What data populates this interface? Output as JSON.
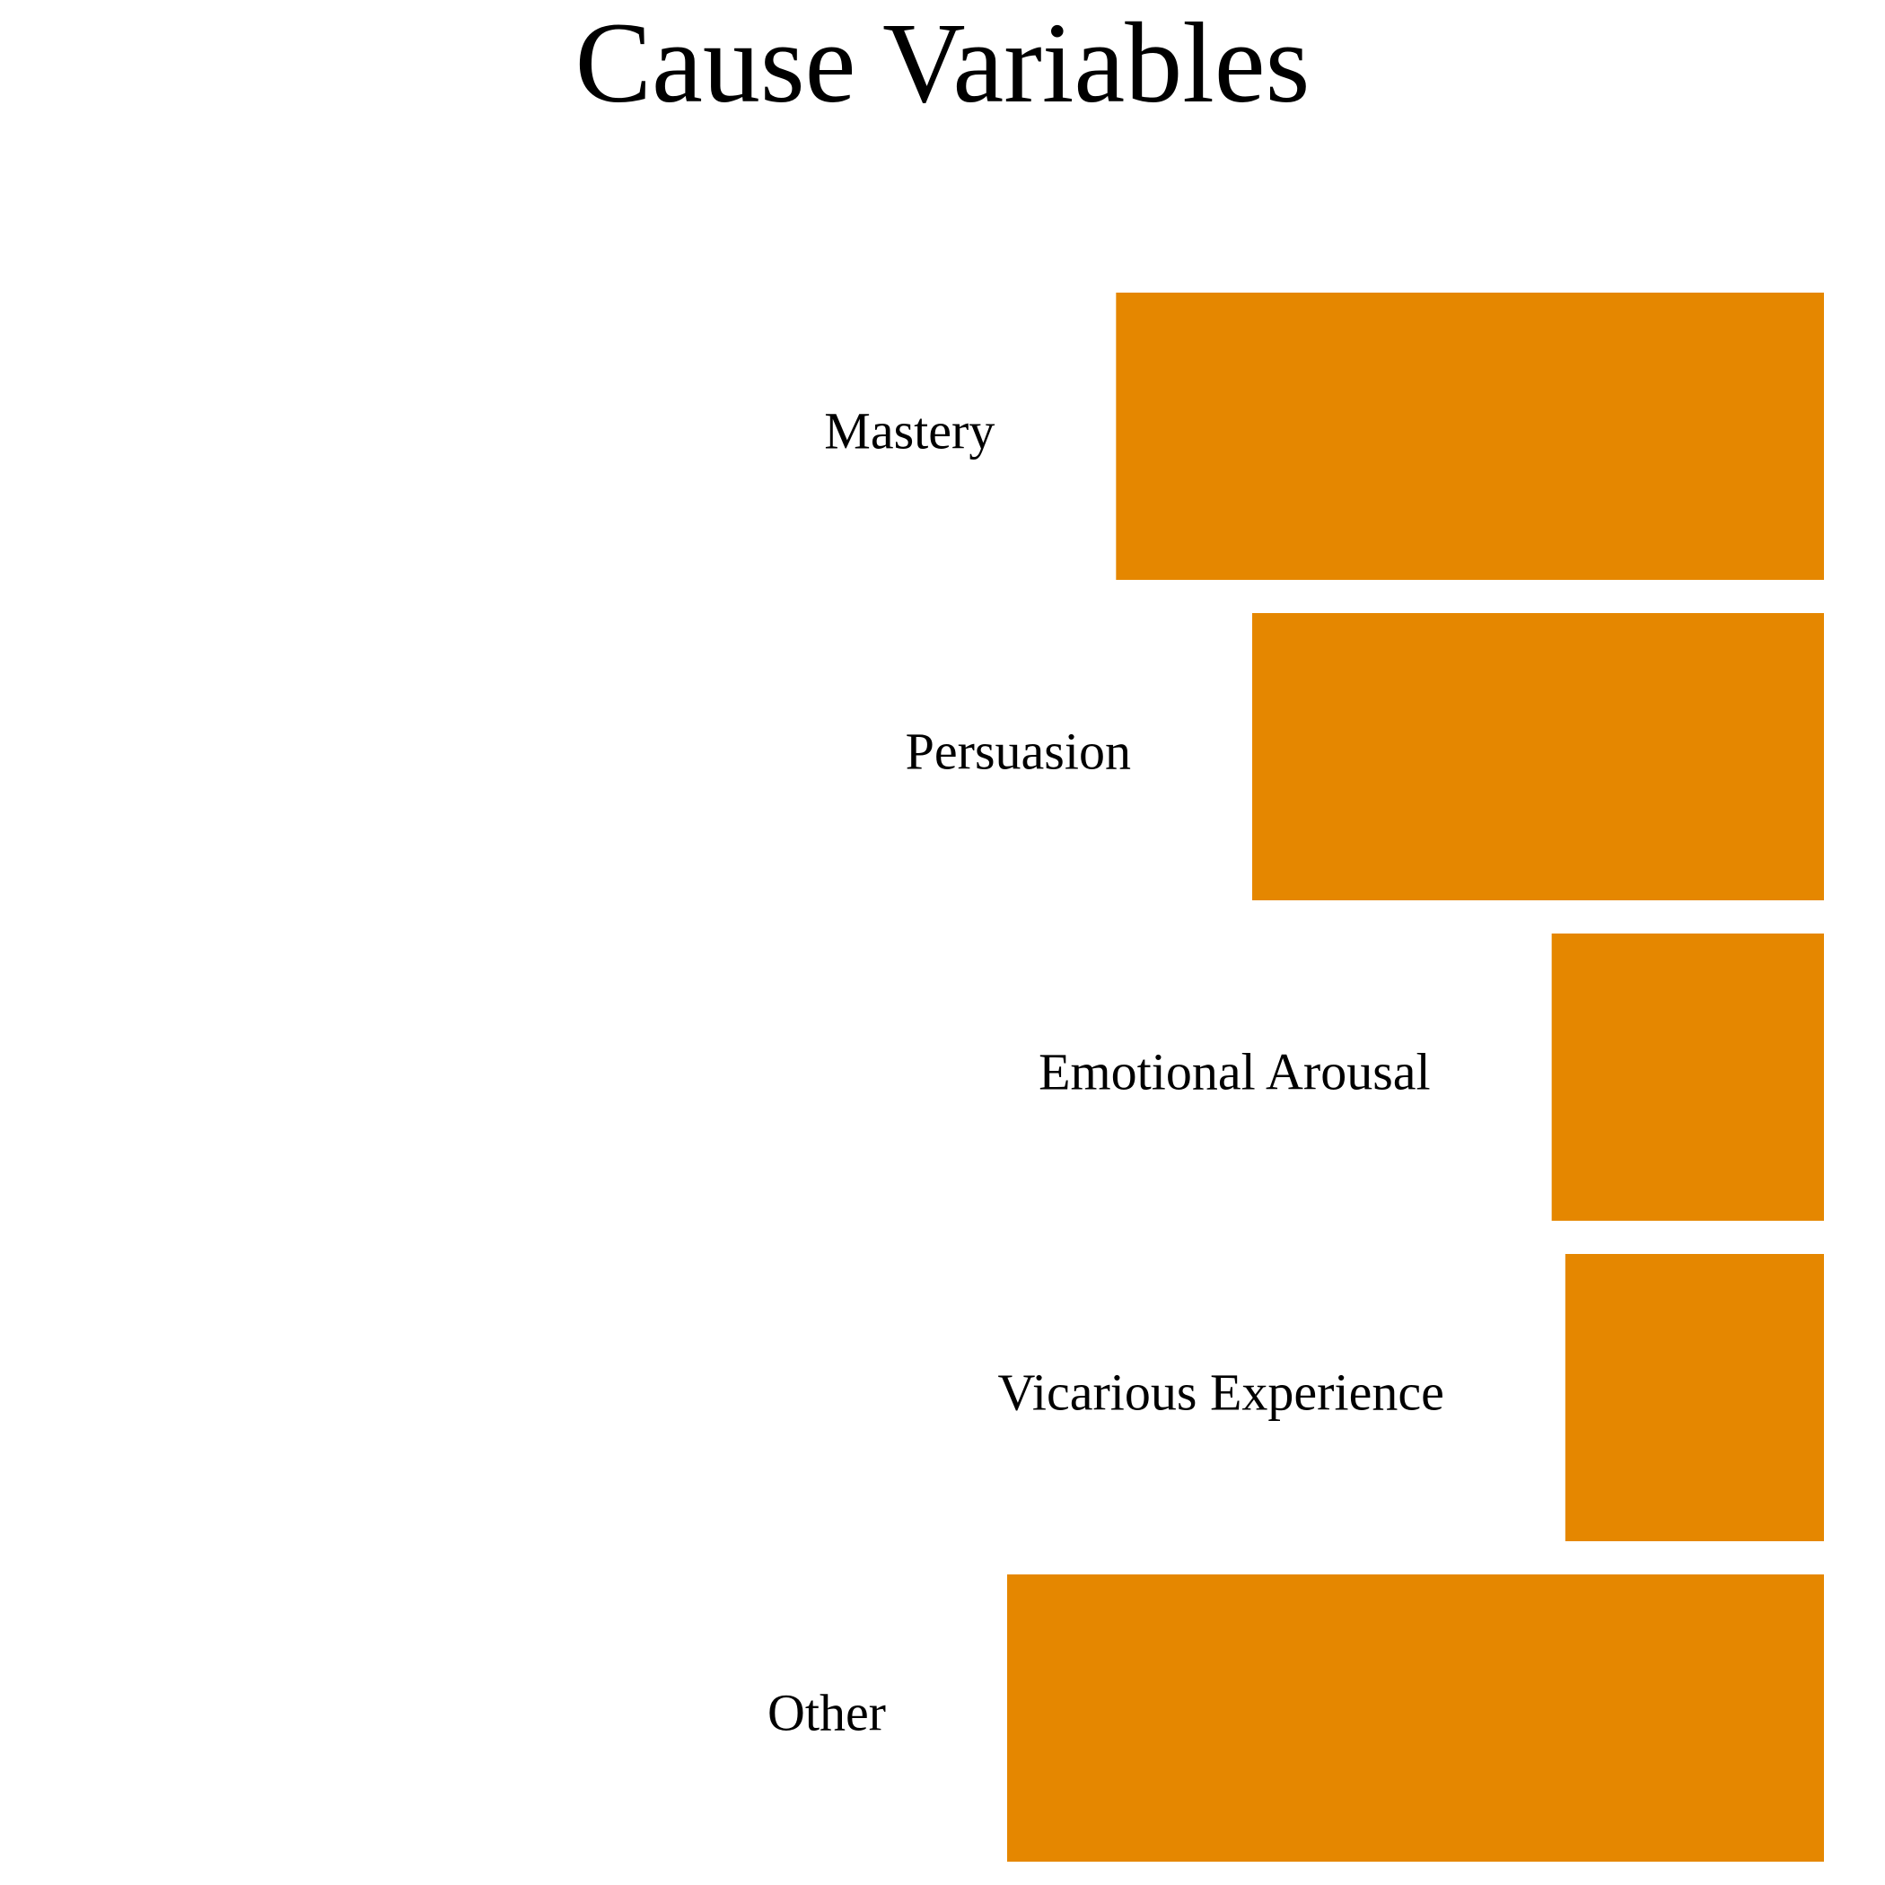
{
  "chart_data": {
    "type": "bar",
    "orientation": "horizontal",
    "title": "Cause Variables",
    "categories": [
      "Mastery",
      "Persuasion",
      "Emotional Arousal",
      "Vicarious Experience",
      "Other"
    ],
    "values": [
      26,
      21,
      10,
      9.5,
      30
    ],
    "xlim": [
      0,
      30
    ],
    "xlabel": "",
    "ylabel": "",
    "grid": false,
    "legend": "none",
    "bar_color": "#E58700"
  }
}
